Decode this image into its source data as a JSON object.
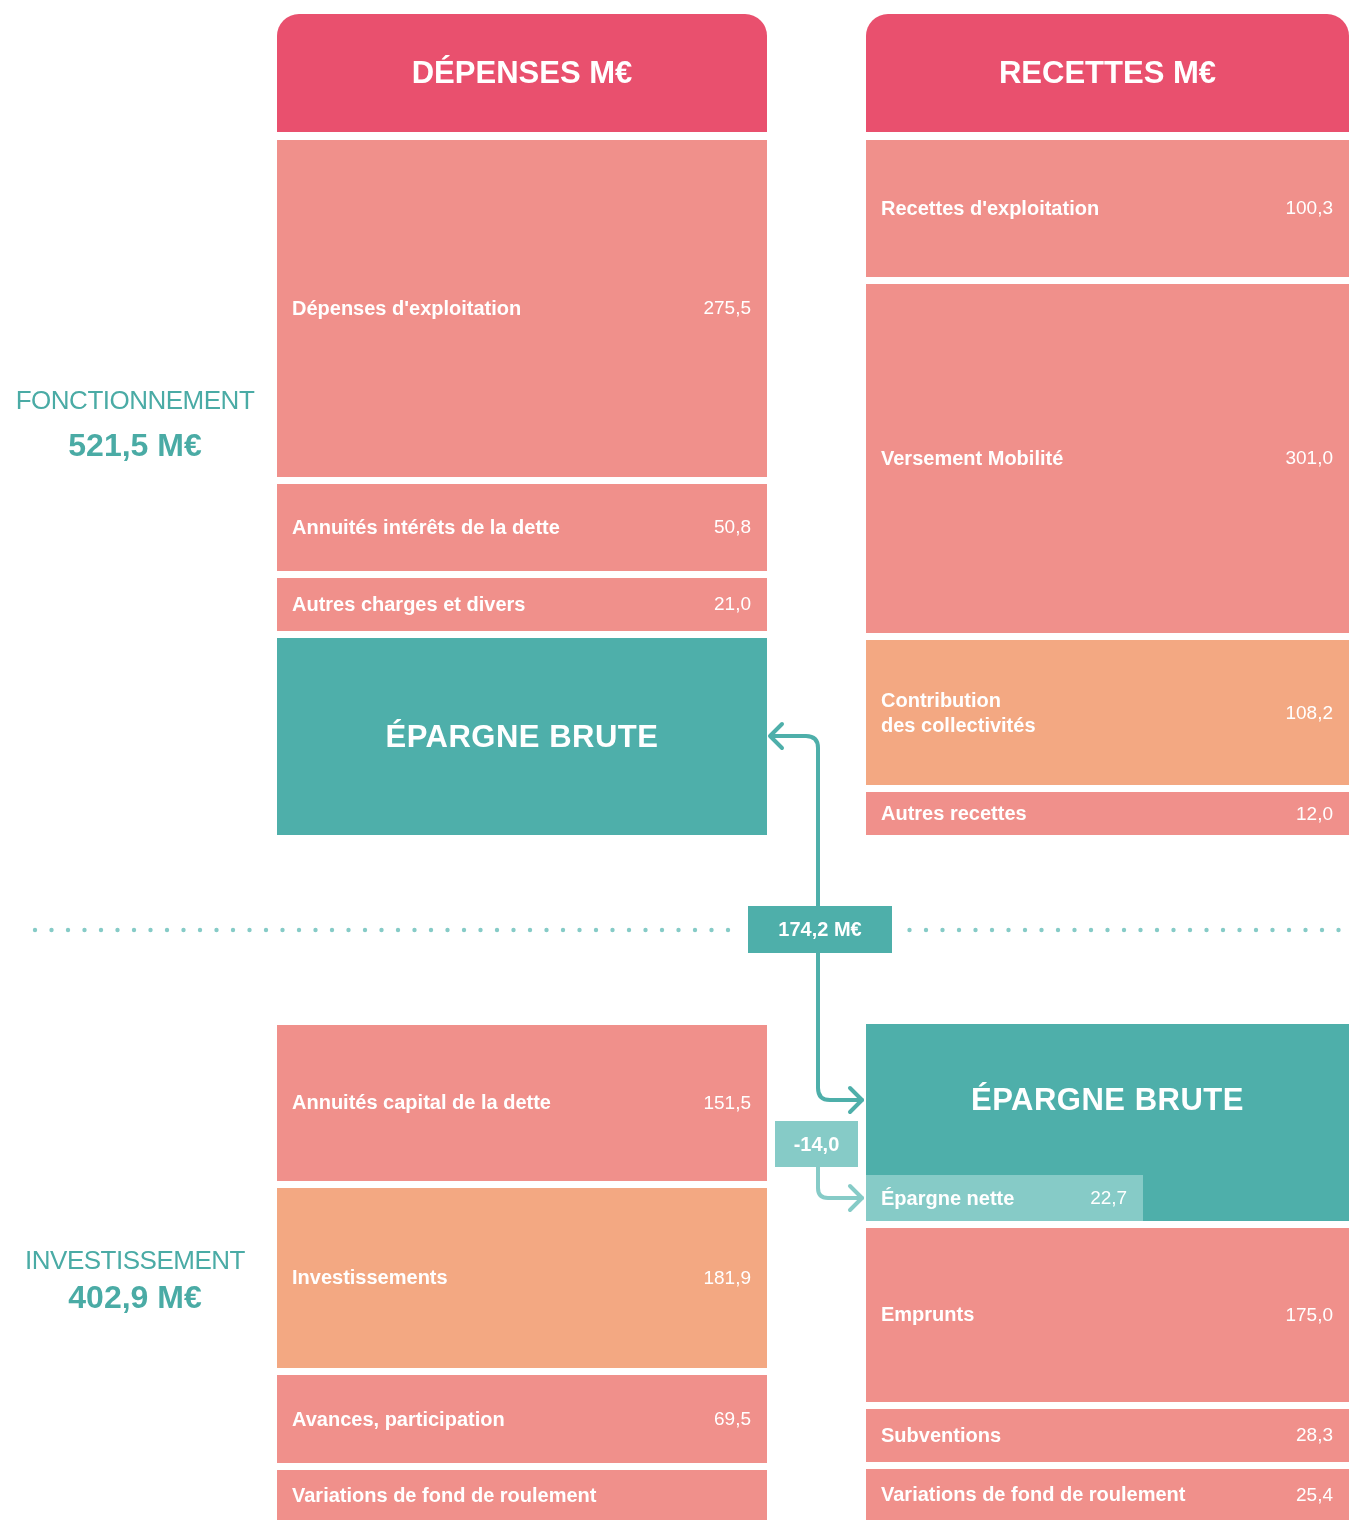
{
  "chart_data": {
    "type": "other",
    "categories": [
      "Dépenses d'exploitation",
      "Annuités intérêts de la dette",
      "Autres charges et divers",
      "ÉPARGNE BRUTE",
      "Recettes d'exploitation",
      "Versement Mobilité",
      "Contribution\ndes collectivités",
      "Autres recettes",
      "Annuités capital de la dette",
      "Investissements",
      "Avances, participation",
      "Variations de fond de roulement",
      "ÉPARGNE BRUTE",
      "Épargne nette",
      "Emprunts",
      "Subventions",
      "Variations de fond de roulement"
    ],
    "colors": [
      "#f0908b",
      "#f0908b",
      "#f0908b",
      "#4eafaa",
      "#f0908b",
      "#f0908b",
      "#f3a882",
      "#f0908b",
      "#f0908b",
      "#f3a882",
      "#f0908b",
      "#f0908b",
      "#4eafaa",
      "#86cbc7",
      "#f0908b",
      "#f0908b",
      "#f0908b"
    ],
    "values": [
      275.5,
      50.8,
      21.0,
      null,
      100.3,
      301.0,
      108.2,
      12.0,
      151.5,
      181.9,
      69.5,
      null,
      null,
      22.7,
      175.0,
      28.3,
      25.4
    ],
    "value_labels": [
      "275,5",
      "50,8",
      "21,0",
      null,
      "100,3",
      "301,0",
      "108,2",
      "12,0",
      "151,5",
      "181,9",
      "69,5",
      null,
      null,
      "22,7",
      "175,0",
      "28,3",
      "25,4"
    ],
    "annotations": [
      "DÉPENSES M€",
      "RECETTES M€",
      "FONCTIONNEMENT",
      "521,5 M€",
      "INVESTISSEMENT",
      "402,9 M€",
      "174,2 M€",
      "-14,0"
    ]
  }
}
